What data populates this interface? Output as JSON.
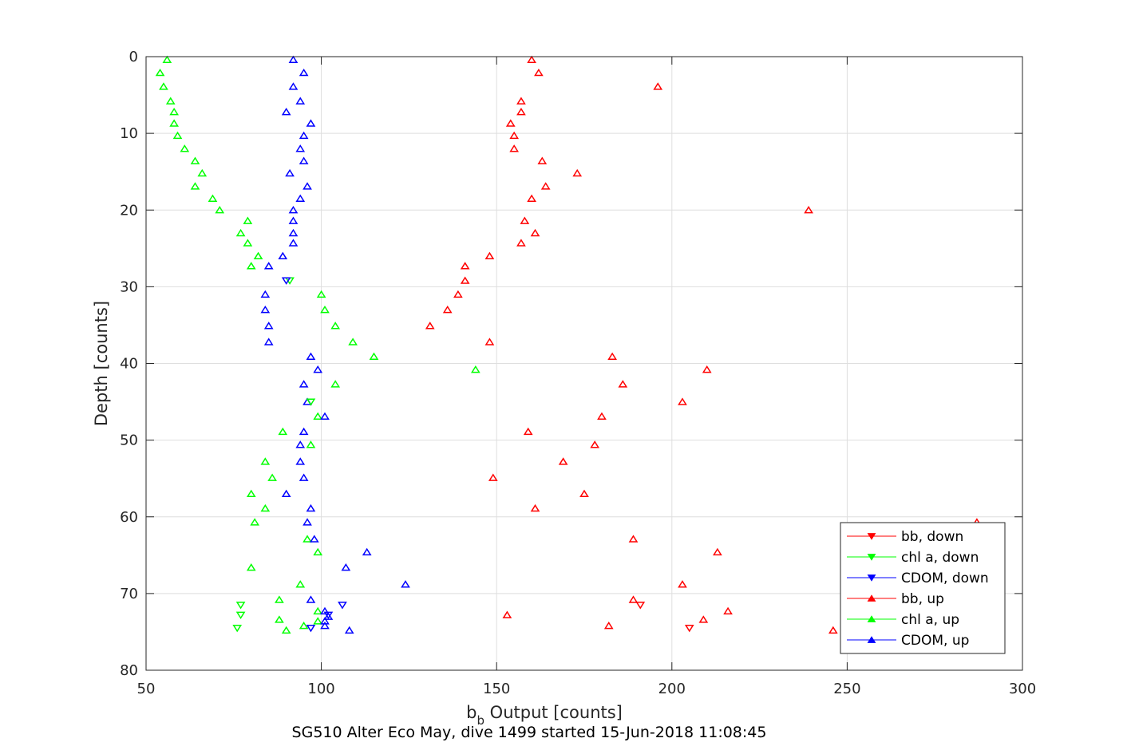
{
  "chart_data": {
    "type": "scatter",
    "subtitle": "SG510 Alter Eco May, dive 1499 started 15-Jun-2018 11:08:45",
    "xlabel": {
      "base": "b",
      "sub": "b",
      "rest": " Output [counts]"
    },
    "ylabel": "Depth [counts]",
    "xlim": [
      50,
      300
    ],
    "ylim": [
      0,
      80
    ],
    "y_reversed": true,
    "grid": true,
    "xticks": [
      50,
      100,
      150,
      200,
      250,
      300
    ],
    "yticks": [
      0,
      10,
      20,
      30,
      40,
      50,
      60,
      70,
      80
    ],
    "legend_position": "bottom-right",
    "series": [
      {
        "name": "bb, down",
        "marker": "triangle-down",
        "color": "#ff0000",
        "points": [
          [
            191,
            71.5
          ],
          [
            205,
            74.5
          ]
        ]
      },
      {
        "name": "chl a, down",
        "marker": "triangle-down",
        "color": "#00ff00",
        "points": [
          [
            77,
            71.5
          ],
          [
            77,
            72.8
          ],
          [
            76,
            74.5
          ],
          [
            91,
            29.2
          ],
          [
            97,
            45
          ]
        ]
      },
      {
        "name": "CDOM, down",
        "marker": "triangle-down",
        "color": "#0000ff",
        "points": [
          [
            106,
            71.5
          ],
          [
            102,
            72.8
          ],
          [
            97,
            74.5
          ],
          [
            90,
            29.2
          ]
        ]
      },
      {
        "name": "bb, up",
        "marker": "triangle-up",
        "color": "#ff0000",
        "points": [
          [
            160,
            0.4
          ],
          [
            162,
            2.1
          ],
          [
            196,
            3.9
          ],
          [
            157,
            5.8
          ],
          [
            157,
            7.2
          ],
          [
            154,
            8.7
          ],
          [
            155,
            10.3
          ],
          [
            155,
            12
          ],
          [
            163,
            13.6
          ],
          [
            173,
            15.2
          ],
          [
            164,
            16.9
          ],
          [
            160,
            18.5
          ],
          [
            239,
            20
          ],
          [
            158,
            21.4
          ],
          [
            161,
            23
          ],
          [
            157,
            24.3
          ],
          [
            148,
            26
          ],
          [
            141,
            27.3
          ],
          [
            141,
            29.2
          ],
          [
            139,
            31
          ],
          [
            136,
            33
          ],
          [
            131,
            35.1
          ],
          [
            148,
            37.2
          ],
          [
            183,
            39.1
          ],
          [
            210,
            40.8
          ],
          [
            186,
            42.7
          ],
          [
            203,
            45
          ],
          [
            180,
            46.9
          ],
          [
            159,
            48.9
          ],
          [
            178,
            50.6
          ],
          [
            169,
            52.8
          ],
          [
            149,
            54.9
          ],
          [
            175,
            57
          ],
          [
            161,
            58.9
          ],
          [
            287,
            60.7
          ],
          [
            189,
            62.9
          ],
          [
            213,
            64.6
          ],
          [
            203,
            68.8
          ],
          [
            189,
            70.8
          ],
          [
            216,
            72.3
          ],
          [
            153,
            72.8
          ],
          [
            209,
            73.4
          ],
          [
            182,
            74.2
          ],
          [
            246,
            74.8
          ]
        ]
      },
      {
        "name": "chl a, up",
        "marker": "triangle-up",
        "color": "#00ff00",
        "points": [
          [
            56,
            0.4
          ],
          [
            54,
            2.1
          ],
          [
            55,
            3.9
          ],
          [
            57,
            5.8
          ],
          [
            58,
            7.2
          ],
          [
            58,
            8.7
          ],
          [
            59,
            10.3
          ],
          [
            61,
            12
          ],
          [
            64,
            13.6
          ],
          [
            66,
            15.2
          ],
          [
            64,
            16.9
          ],
          [
            69,
            18.5
          ],
          [
            71,
            20
          ],
          [
            79,
            21.4
          ],
          [
            77,
            23
          ],
          [
            79,
            24.3
          ],
          [
            82,
            26
          ],
          [
            80,
            27.3
          ],
          [
            100,
            31
          ],
          [
            101,
            33
          ],
          [
            104,
            35.1
          ],
          [
            109,
            37.2
          ],
          [
            115,
            39.1
          ],
          [
            144,
            40.8
          ],
          [
            104,
            42.7
          ],
          [
            99,
            46.9
          ],
          [
            89,
            48.9
          ],
          [
            97,
            50.6
          ],
          [
            84,
            52.8
          ],
          [
            86,
            54.9
          ],
          [
            80,
            57
          ],
          [
            84,
            58.9
          ],
          [
            81,
            60.7
          ],
          [
            96,
            62.9
          ],
          [
            99,
            64.6
          ],
          [
            80,
            66.6
          ],
          [
            94,
            68.8
          ],
          [
            88,
            70.8
          ],
          [
            99,
            72.3
          ],
          [
            88,
            73.4
          ],
          [
            99,
            73.6
          ],
          [
            95,
            74.2
          ],
          [
            90,
            74.8
          ]
        ]
      },
      {
        "name": "CDOM, up",
        "marker": "triangle-up",
        "color": "#0000ff",
        "points": [
          [
            92,
            0.4
          ],
          [
            95,
            2.1
          ],
          [
            92,
            3.9
          ],
          [
            94,
            5.8
          ],
          [
            90,
            7.2
          ],
          [
            97,
            8.7
          ],
          [
            95,
            10.3
          ],
          [
            94,
            12
          ],
          [
            95,
            13.6
          ],
          [
            91,
            15.2
          ],
          [
            96,
            16.9
          ],
          [
            94,
            18.5
          ],
          [
            92,
            20
          ],
          [
            92,
            21.4
          ],
          [
            92,
            23
          ],
          [
            92,
            24.3
          ],
          [
            89,
            26
          ],
          [
            85,
            27.3
          ],
          [
            84,
            31
          ],
          [
            84,
            33
          ],
          [
            85,
            35.1
          ],
          [
            85,
            37.2
          ],
          [
            97,
            39.1
          ],
          [
            99,
            40.8
          ],
          [
            95,
            42.7
          ],
          [
            96,
            45
          ],
          [
            101,
            46.9
          ],
          [
            95,
            48.9
          ],
          [
            94,
            50.6
          ],
          [
            94,
            52.8
          ],
          [
            95,
            54.9
          ],
          [
            90,
            57
          ],
          [
            97,
            58.9
          ],
          [
            96,
            60.7
          ],
          [
            98,
            62.9
          ],
          [
            113,
            64.6
          ],
          [
            107,
            66.6
          ],
          [
            124,
            68.8
          ],
          [
            97,
            70.8
          ],
          [
            101,
            72.3
          ],
          [
            102,
            73
          ],
          [
            101,
            73.6
          ],
          [
            101,
            74.2
          ],
          [
            108,
            74.8
          ]
        ]
      }
    ]
  }
}
